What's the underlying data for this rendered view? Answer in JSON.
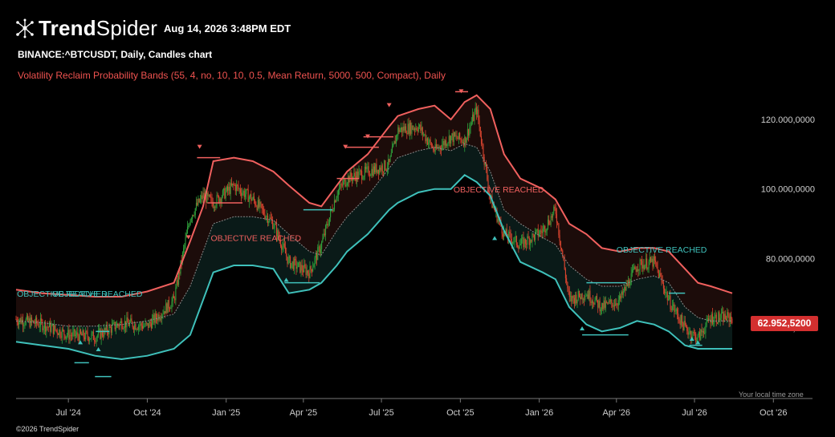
{
  "header": {
    "brand_bold": "Trend",
    "brand_light": "Spider",
    "timestamp": "Aug 14, 2026 3:48PM EDT",
    "symbol_line": "BINANCE:^BTCUSDT, Daily, Candles chart",
    "indicator_line": "Volatility Reclaim Probability Bands (55, 4, no, 10, 10, 0.5, Mean Return, 5000, 500, Compact), Daily"
  },
  "footer": {
    "copyright": "©2026 TrendSpider",
    "timezone_note": "Your local time zone"
  },
  "last_price": "62.952,5200",
  "colors": {
    "background": "#000000",
    "upper_band": "#f0605e",
    "lower_band": "#3fc1bb",
    "mid_line": "#8a8a8a",
    "candle_up": "#2e9e3a",
    "candle_down": "#d9442f",
    "upper_fill": "#1c0c0a",
    "lower_fill": "#0a1a18",
    "badge": "#d32f2f"
  },
  "chart_data": {
    "type": "line",
    "title": "BINANCE:^BTCUSDT, Daily, Candles chart",
    "x_ticks": [
      "Jul '24",
      "Oct '24",
      "Jan '25",
      "Apr '25",
      "Jul '25",
      "Oct '25",
      "Jan '26",
      "Apr '26",
      "Jul '26",
      "Oct '26"
    ],
    "y_ticks": [
      "120.000,0000",
      "100.000,0000",
      "80.000,0000",
      "60.000,0000"
    ],
    "y_tick_values": [
      120000,
      100000,
      80000,
      60000
    ],
    "x": [
      "2024-05-01",
      "2024-06-01",
      "2024-07-01",
      "2024-08-01",
      "2024-09-01",
      "2024-10-01",
      "2024-11-01",
      "2024-11-20",
      "2024-12-05",
      "2024-12-17",
      "2025-01-10",
      "2025-02-01",
      "2025-02-25",
      "2025-03-15",
      "2025-04-08",
      "2025-04-22",
      "2025-05-10",
      "2025-05-22",
      "2025-06-15",
      "2025-07-10",
      "2025-07-20",
      "2025-08-13",
      "2025-09-01",
      "2025-09-20",
      "2025-10-06",
      "2025-10-20",
      "2025-11-05",
      "2025-11-21",
      "2025-12-10",
      "2026-01-05",
      "2026-01-20",
      "2026-02-05",
      "2026-02-25",
      "2026-03-15",
      "2026-04-05",
      "2026-04-25",
      "2026-05-15",
      "2026-06-01",
      "2026-06-20",
      "2026-07-05",
      "2026-07-20",
      "2026-08-14"
    ],
    "series": [
      {
        "name": "Upper Band",
        "values": [
          71000,
          70000,
          69500,
          69000,
          69000,
          70500,
          73000,
          85000,
          95000,
          108000,
          109000,
          108000,
          105000,
          101000,
          96000,
          95000,
          101000,
          105000,
          110000,
          118000,
          121000,
          123000,
          124000,
          120000,
          125000,
          127000,
          123000,
          110000,
          103000,
          100000,
          97000,
          90000,
          87000,
          83000,
          82000,
          83000,
          83000,
          82000,
          77000,
          73000,
          72000,
          70000
        ]
      },
      {
        "name": "Mid Line",
        "values": [
          62000,
          61500,
          60500,
          60500,
          61000,
          62000,
          64000,
          72000,
          82000,
          90000,
          92000,
          92000,
          91000,
          87000,
          82000,
          81000,
          88000,
          92000,
          98000,
          106000,
          109000,
          111000,
          112000,
          111000,
          113000,
          112000,
          105000,
          94000,
          90000,
          86000,
          84000,
          78000,
          74000,
          72000,
          72000,
          74000,
          75000,
          73000,
          66000,
          63000,
          62000,
          62000
        ]
      },
      {
        "name": "Lower Band",
        "values": [
          56000,
          55000,
          54000,
          52000,
          51000,
          52000,
          54000,
          58000,
          68000,
          76000,
          78000,
          78000,
          77000,
          70000,
          71000,
          73000,
          78000,
          82000,
          87000,
          94000,
          96000,
          99000,
          100000,
          100000,
          104000,
          102000,
          98000,
          88000,
          79000,
          76000,
          74000,
          66000,
          61000,
          59000,
          60000,
          62000,
          61000,
          59000,
          55000,
          54000,
          54000,
          54000
        ]
      },
      {
        "name": "Close",
        "values": [
          62500,
          61000,
          58000,
          57500,
          61500,
          60500,
          68000,
          92000,
          98000,
          96000,
          101000,
          97000,
          90000,
          79000,
          76000,
          84000,
          99000,
          103000,
          105000,
          107000,
          117000,
          118000,
          111000,
          115000,
          114000,
          123000,
          97000,
          87000,
          84000,
          88000,
          94000,
          68000,
          70000,
          66000,
          68000,
          78000,
          79000,
          68000,
          60000,
          57000,
          63000,
          62952.52
        ]
      }
    ],
    "annotations": [
      "OBJECTIVE REACHED",
      "OBJECTIVE REACHED",
      "OBJECTIVE REACHED",
      "OBJECTIVE REACHED",
      "OBJECTIVE REACHED"
    ],
    "last_value": 62952.52,
    "grid": false,
    "legend": "none"
  }
}
